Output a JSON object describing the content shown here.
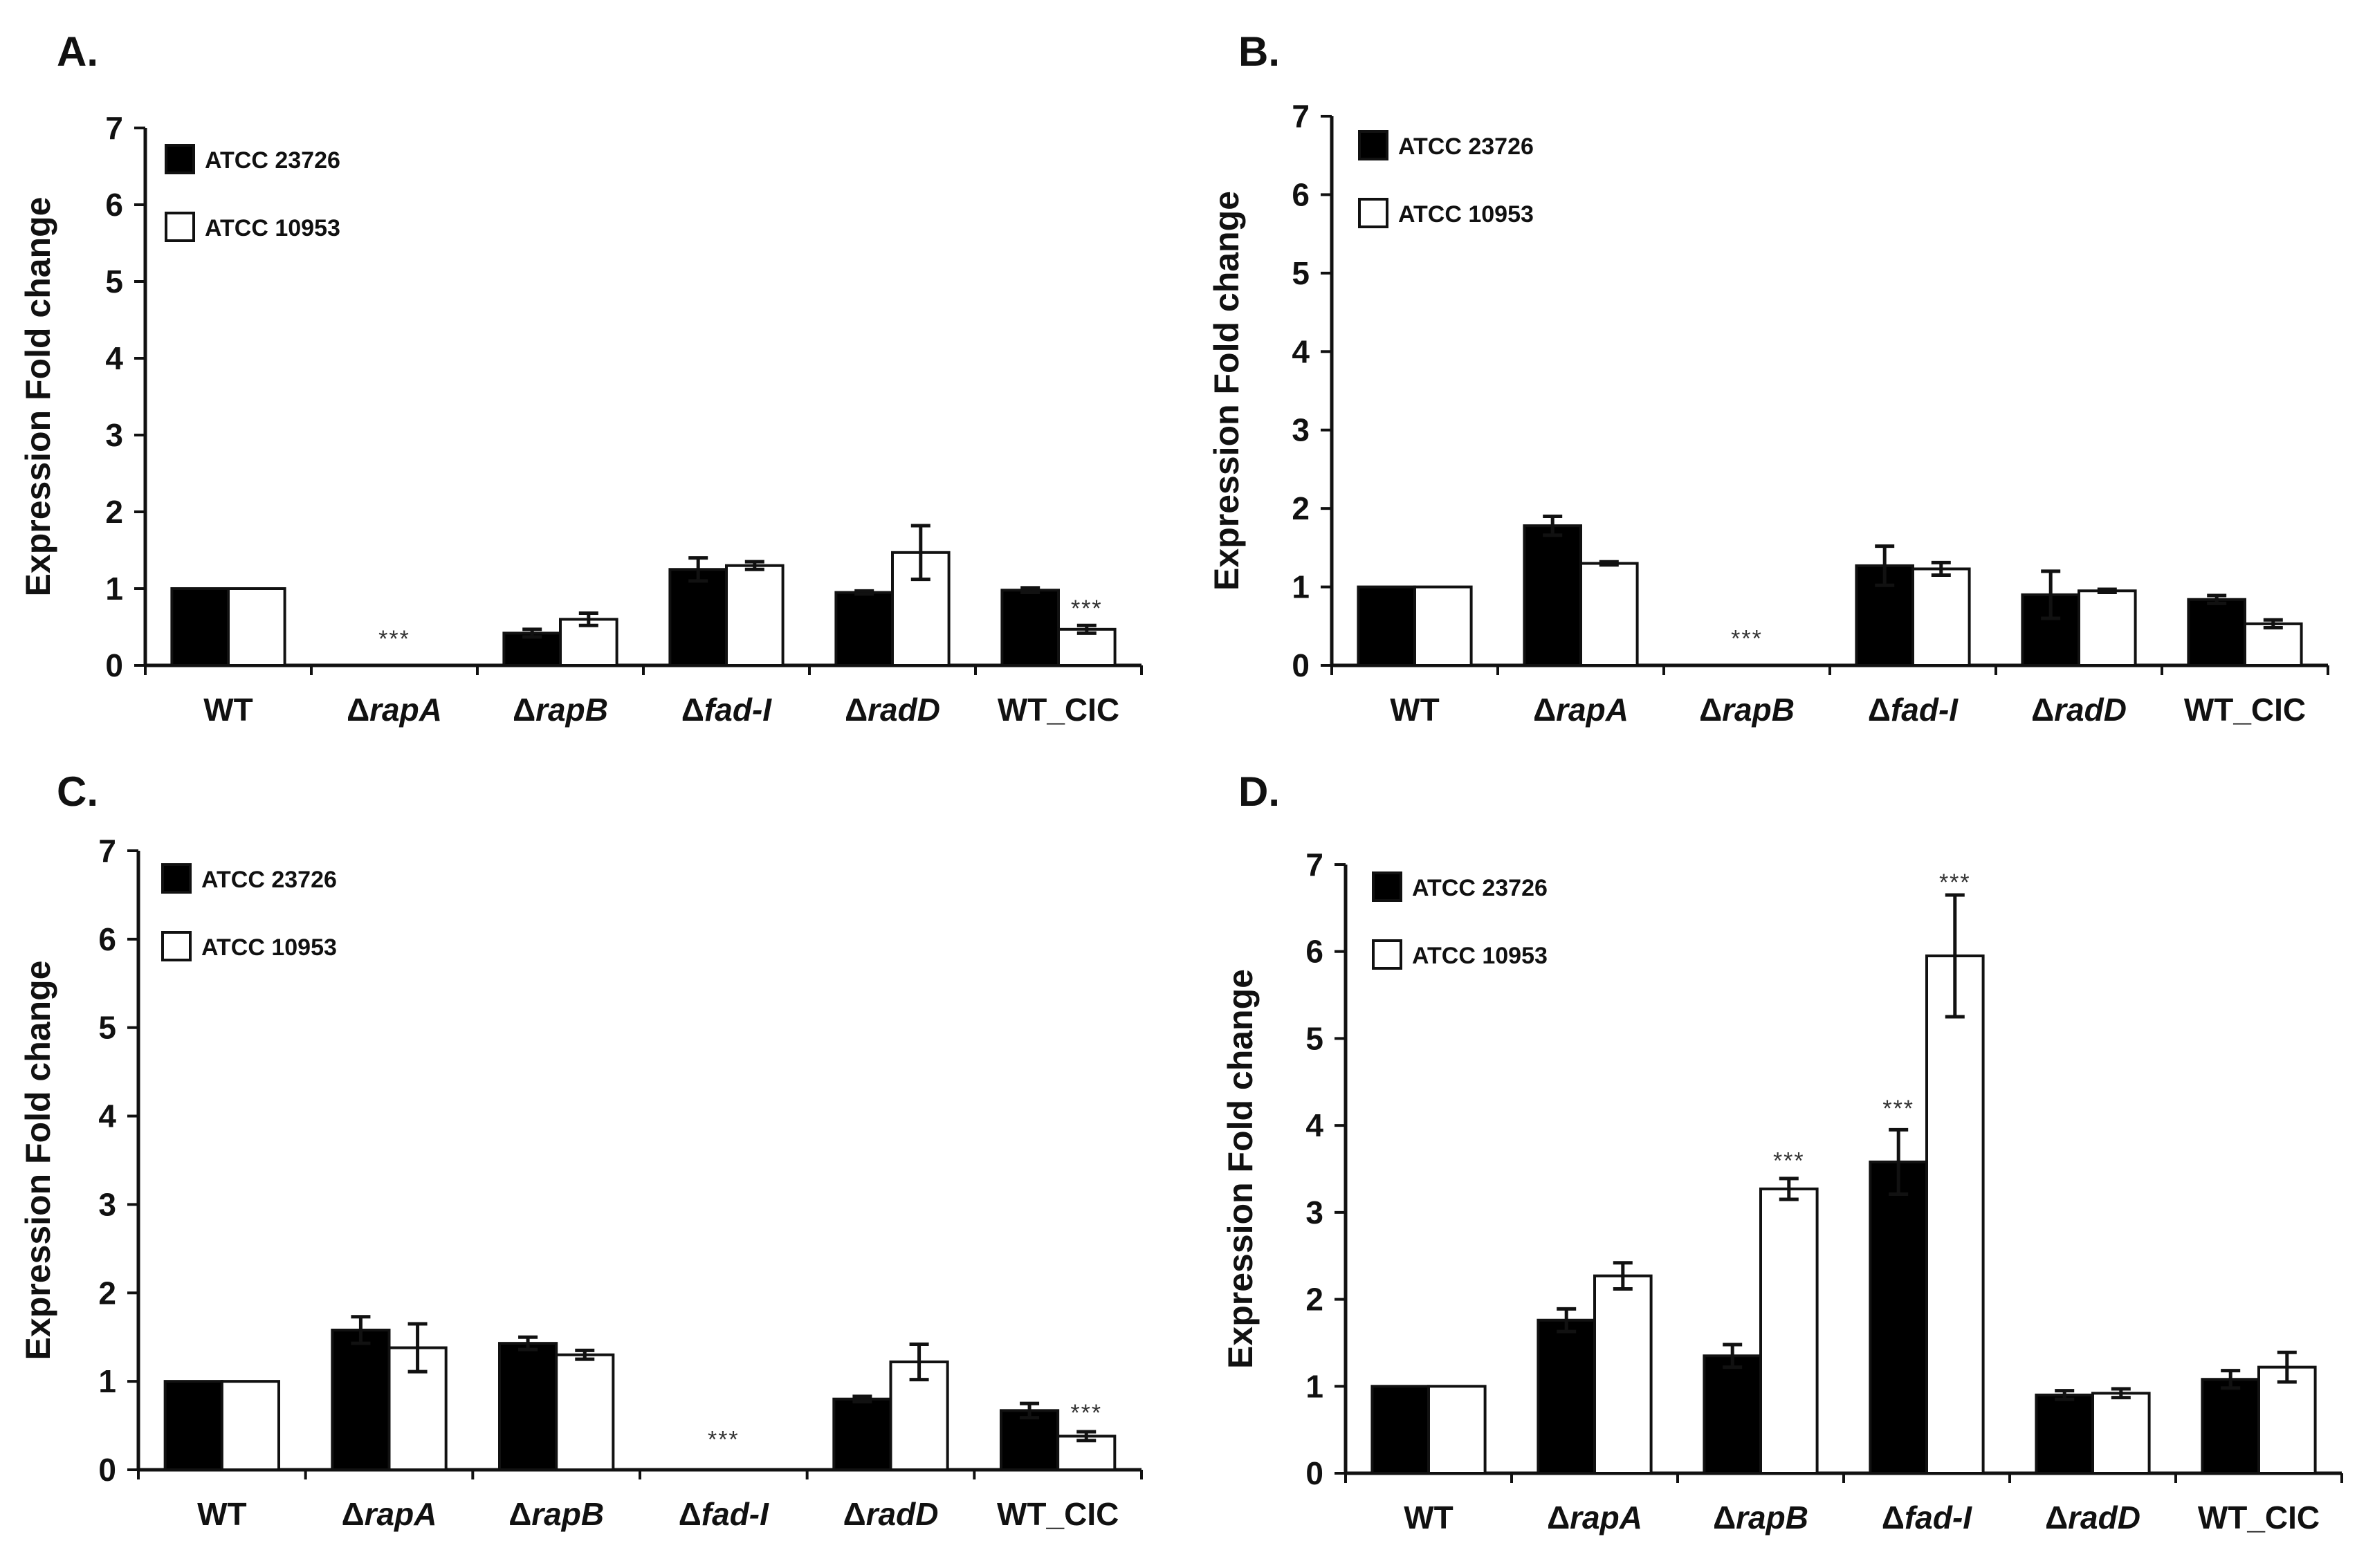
{
  "colors": {
    "strain1": "#000000",
    "strain2": "#ffffff",
    "axis": "#111111"
  },
  "chart_data": [
    {
      "type": "bar",
      "panel": "A.",
      "ylabel": "Expression Fold change",
      "yticks": [
        "0",
        "1",
        "2",
        "3",
        "4",
        "5",
        "6",
        "7"
      ],
      "ylim": [
        0,
        7
      ],
      "categories": [
        {
          "prefix": "",
          "name": "WT"
        },
        {
          "prefix": "Δ",
          "name": "rapA"
        },
        {
          "prefix": "Δ",
          "name": "rapB"
        },
        {
          "prefix": "Δ",
          "name": "fad-I"
        },
        {
          "prefix": "Δ",
          "name": "radD"
        },
        {
          "prefix": "",
          "name": "WT_CIC"
        }
      ],
      "legend": [
        "ATCC 23726",
        "ATCC 10953"
      ],
      "legend_position": "top-left",
      "series": [
        {
          "name": "ATCC 23726",
          "values": [
            1.0,
            0.0,
            0.42,
            1.25,
            0.95,
            0.98
          ],
          "errors": [
            0.0,
            0.0,
            0.05,
            0.15,
            0.02,
            0.03
          ]
        },
        {
          "name": "ATCC 10953",
          "values": [
            1.0,
            0.0,
            0.6,
            1.3,
            1.47,
            0.47
          ],
          "errors": [
            0.0,
            0.0,
            0.08,
            0.05,
            0.35,
            0.05
          ]
        }
      ],
      "annotations": [
        {
          "text": "***",
          "category": 1,
          "y": 0.35
        },
        {
          "text": "***",
          "category": 5,
          "y": 0.75
        }
      ]
    },
    {
      "type": "bar",
      "panel": "B.",
      "ylabel": "Expression Fold change",
      "yticks": [
        "0",
        "1",
        "2",
        "3",
        "4",
        "5",
        "6",
        "7"
      ],
      "ylim": [
        0,
        7
      ],
      "categories": [
        {
          "prefix": "",
          "name": "WT"
        },
        {
          "prefix": "Δ",
          "name": "rapA"
        },
        {
          "prefix": "Δ",
          "name": "rapB"
        },
        {
          "prefix": "Δ",
          "name": "fad-I"
        },
        {
          "prefix": "Δ",
          "name": "radD"
        },
        {
          "prefix": "",
          "name": "WT_CIC"
        }
      ],
      "legend": [
        "ATCC 23726",
        "ATCC 10953"
      ],
      "legend_position": "top-left",
      "series": [
        {
          "name": "ATCC 23726",
          "values": [
            1.0,
            1.78,
            0.0,
            1.27,
            0.9,
            0.84
          ],
          "errors": [
            0.0,
            0.12,
            0.0,
            0.25,
            0.3,
            0.05
          ]
        },
        {
          "name": "ATCC 10953",
          "values": [
            1.0,
            1.3,
            0.0,
            1.23,
            0.95,
            0.53
          ],
          "errors": [
            0.0,
            0.02,
            0.0,
            0.08,
            0.02,
            0.05
          ]
        }
      ],
      "annotations": [
        {
          "text": "***",
          "category": 2,
          "y": 0.35
        }
      ]
    },
    {
      "type": "bar",
      "panel": "C.",
      "ylabel": "Expression Fold change",
      "yticks": [
        "0",
        "1",
        "2",
        "3",
        "4",
        "5",
        "6",
        "7"
      ],
      "ylim": [
        0,
        7
      ],
      "categories": [
        {
          "prefix": "",
          "name": "WT"
        },
        {
          "prefix": "Δ",
          "name": "rapA"
        },
        {
          "prefix": "Δ",
          "name": "rapB"
        },
        {
          "prefix": "Δ",
          "name": "fad-I"
        },
        {
          "prefix": "Δ",
          "name": "radD"
        },
        {
          "prefix": "",
          "name": "WT_CIC"
        }
      ],
      "legend": [
        "ATCC 23726",
        "ATCC 10953"
      ],
      "legend_position": "top-left",
      "series": [
        {
          "name": "ATCC 23726",
          "values": [
            1.0,
            1.58,
            1.43,
            0.0,
            0.8,
            0.67
          ],
          "errors": [
            0.0,
            0.15,
            0.07,
            0.0,
            0.03,
            0.08
          ]
        },
        {
          "name": "ATCC 10953",
          "values": [
            1.0,
            1.38,
            1.3,
            0.0,
            1.22,
            0.38
          ],
          "errors": [
            0.0,
            0.27,
            0.05,
            0.0,
            0.2,
            0.05
          ]
        }
      ],
      "annotations": [
        {
          "text": "***",
          "category": 3,
          "y": 0.35
        },
        {
          "text": "***",
          "category": 5,
          "y": 0.65
        }
      ]
    },
    {
      "type": "bar",
      "panel": "D.",
      "ylabel": "Expression Fold change",
      "yticks": [
        "0",
        "1",
        "2",
        "3",
        "4",
        "5",
        "6",
        "7"
      ],
      "ylim": [
        0,
        7
      ],
      "categories": [
        {
          "prefix": "",
          "name": "WT"
        },
        {
          "prefix": "Δ",
          "name": "rapA"
        },
        {
          "prefix": "Δ",
          "name": "rapB"
        },
        {
          "prefix": "Δ",
          "name": "fad-I"
        },
        {
          "prefix": "Δ",
          "name": "radD"
        },
        {
          "prefix": "",
          "name": "WT_CIC"
        }
      ],
      "legend": [
        "ATCC 23726",
        "ATCC 10953"
      ],
      "legend_position": "top-left",
      "series": [
        {
          "name": "ATCC 23726",
          "values": [
            1.0,
            1.76,
            1.35,
            3.58,
            0.9,
            1.08
          ],
          "errors": [
            0.0,
            0.13,
            0.13,
            0.37,
            0.05,
            0.1
          ]
        },
        {
          "name": "ATCC 10953",
          "values": [
            1.0,
            2.27,
            3.27,
            5.95,
            0.92,
            1.22
          ],
          "errors": [
            0.0,
            0.15,
            0.12,
            0.7,
            0.05,
            0.17
          ]
        }
      ],
      "annotations": [
        {
          "text": "***",
          "category": 2,
          "y": 3.6
        },
        {
          "text": "***",
          "category": 3,
          "y": 4.2
        },
        {
          "text": "***",
          "category": 3,
          "y": 6.8
        }
      ]
    }
  ]
}
